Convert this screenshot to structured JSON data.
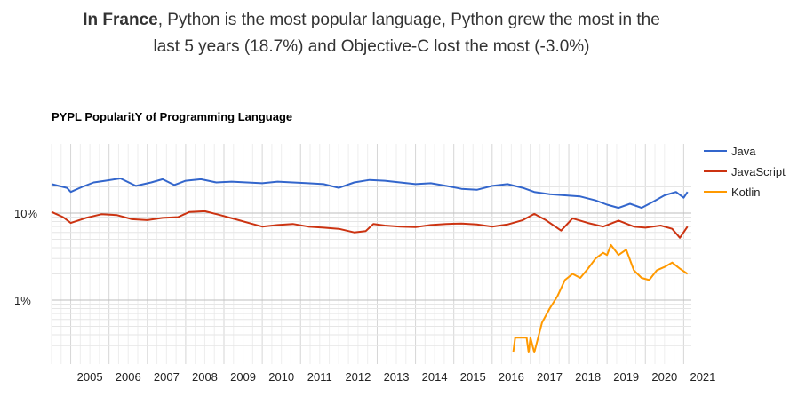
{
  "headline": {
    "country": "In France",
    "text_line1": ", Python is the most popular language, Python grew the most in the",
    "text_line2": "last 5 years (18.7%) and Objective-C lost the most (-3.0%)"
  },
  "chart_data": {
    "type": "line",
    "title": "PYPL PopularitY of Programming Language",
    "xlabel": "",
    "ylabel": "",
    "y_scale": "log",
    "ylim": [
      0.25,
      28
    ],
    "xlim": [
      2004.5,
      2021.2
    ],
    "y_ticks": [
      {
        "value": 1,
        "label": "1%"
      },
      {
        "value": 10,
        "label": "10%"
      }
    ],
    "x_ticks": [
      "2005",
      "2006",
      "2007",
      "2008",
      "2009",
      "2010",
      "2011",
      "2012",
      "2013",
      "2014",
      "2015",
      "2016",
      "2017",
      "2018",
      "2019",
      "2020",
      "2021"
    ],
    "grid": true,
    "legend_position": "right",
    "series": [
      {
        "name": "Java",
        "color": "#3366cc",
        "points": [
          [
            2004.5,
            21.5
          ],
          [
            2004.9,
            19.5
          ],
          [
            2005.0,
            17.5
          ],
          [
            2005.3,
            20.0
          ],
          [
            2005.6,
            22.5
          ],
          [
            2005.9,
            23.5
          ],
          [
            2006.3,
            25.0
          ],
          [
            2006.7,
            20.5
          ],
          [
            2007.1,
            22.5
          ],
          [
            2007.4,
            24.5
          ],
          [
            2007.7,
            21.0
          ],
          [
            2008.0,
            23.5
          ],
          [
            2008.4,
            24.5
          ],
          [
            2008.8,
            22.5
          ],
          [
            2009.2,
            23.0
          ],
          [
            2009.6,
            22.5
          ],
          [
            2010.0,
            22.0
          ],
          [
            2010.4,
            23.0
          ],
          [
            2010.8,
            22.5
          ],
          [
            2011.2,
            22.0
          ],
          [
            2011.6,
            21.5
          ],
          [
            2012.0,
            19.5
          ],
          [
            2012.4,
            22.5
          ],
          [
            2012.8,
            24.0
          ],
          [
            2013.2,
            23.5
          ],
          [
            2013.6,
            22.5
          ],
          [
            2014.0,
            21.5
          ],
          [
            2014.4,
            22.0
          ],
          [
            2014.8,
            20.5
          ],
          [
            2015.2,
            19.0
          ],
          [
            2015.6,
            18.5
          ],
          [
            2016.0,
            20.5
          ],
          [
            2016.4,
            21.5
          ],
          [
            2016.8,
            19.5
          ],
          [
            2017.1,
            17.5
          ],
          [
            2017.5,
            16.5
          ],
          [
            2017.9,
            16.0
          ],
          [
            2018.3,
            15.5
          ],
          [
            2018.7,
            14.0
          ],
          [
            2019.0,
            12.5
          ],
          [
            2019.3,
            11.5
          ],
          [
            2019.6,
            12.8
          ],
          [
            2019.9,
            11.5
          ],
          [
            2020.2,
            13.5
          ],
          [
            2020.5,
            16.0
          ],
          [
            2020.8,
            17.5
          ],
          [
            2021.0,
            15.0
          ],
          [
            2021.1,
            17.5
          ]
        ]
      },
      {
        "name": "JavaScript",
        "color": "#cc3311",
        "points": [
          [
            2004.5,
            10.3
          ],
          [
            2004.8,
            9.0
          ],
          [
            2005.0,
            7.7
          ],
          [
            2005.4,
            8.8
          ],
          [
            2005.8,
            9.7
          ],
          [
            2006.2,
            9.5
          ],
          [
            2006.6,
            8.5
          ],
          [
            2007.0,
            8.3
          ],
          [
            2007.4,
            8.8
          ],
          [
            2007.8,
            9.0
          ],
          [
            2008.1,
            10.3
          ],
          [
            2008.5,
            10.5
          ],
          [
            2008.9,
            9.5
          ],
          [
            2009.3,
            8.5
          ],
          [
            2009.7,
            7.6
          ],
          [
            2010.0,
            7.0
          ],
          [
            2010.4,
            7.3
          ],
          [
            2010.8,
            7.5
          ],
          [
            2011.2,
            7.0
          ],
          [
            2011.6,
            6.8
          ],
          [
            2012.0,
            6.6
          ],
          [
            2012.4,
            6.0
          ],
          [
            2012.7,
            6.2
          ],
          [
            2012.9,
            7.5
          ],
          [
            2013.2,
            7.2
          ],
          [
            2013.6,
            7.0
          ],
          [
            2014.0,
            6.9
          ],
          [
            2014.4,
            7.3
          ],
          [
            2014.8,
            7.5
          ],
          [
            2015.2,
            7.6
          ],
          [
            2015.6,
            7.4
          ],
          [
            2016.0,
            7.0
          ],
          [
            2016.4,
            7.4
          ],
          [
            2016.8,
            8.3
          ],
          [
            2017.1,
            9.8
          ],
          [
            2017.4,
            8.3
          ],
          [
            2017.8,
            6.3
          ],
          [
            2018.1,
            8.7
          ],
          [
            2018.5,
            7.7
          ],
          [
            2018.9,
            7.0
          ],
          [
            2019.3,
            8.2
          ],
          [
            2019.7,
            7.0
          ],
          [
            2020.0,
            6.8
          ],
          [
            2020.4,
            7.2
          ],
          [
            2020.7,
            6.6
          ],
          [
            2020.9,
            5.2
          ],
          [
            2021.1,
            7.0
          ]
        ]
      },
      {
        "name": "Kotlin",
        "color": "#ff9900",
        "points": [
          [
            2016.55,
            0.25
          ],
          [
            2016.6,
            0.37
          ],
          [
            2016.9,
            0.37
          ],
          [
            2016.95,
            0.25
          ],
          [
            2017.0,
            0.37
          ],
          [
            2017.1,
            0.25
          ],
          [
            2017.3,
            0.55
          ],
          [
            2017.5,
            0.8
          ],
          [
            2017.7,
            1.1
          ],
          [
            2017.9,
            1.7
          ],
          [
            2018.1,
            2.0
          ],
          [
            2018.3,
            1.8
          ],
          [
            2018.5,
            2.3
          ],
          [
            2018.7,
            3.0
          ],
          [
            2018.9,
            3.5
          ],
          [
            2019.0,
            3.3
          ],
          [
            2019.1,
            4.3
          ],
          [
            2019.3,
            3.3
          ],
          [
            2019.5,
            3.8
          ],
          [
            2019.7,
            2.2
          ],
          [
            2019.9,
            1.8
          ],
          [
            2020.1,
            1.7
          ],
          [
            2020.3,
            2.2
          ],
          [
            2020.5,
            2.4
          ],
          [
            2020.7,
            2.7
          ],
          [
            2020.9,
            2.3
          ],
          [
            2021.1,
            2.0
          ]
        ]
      }
    ]
  }
}
